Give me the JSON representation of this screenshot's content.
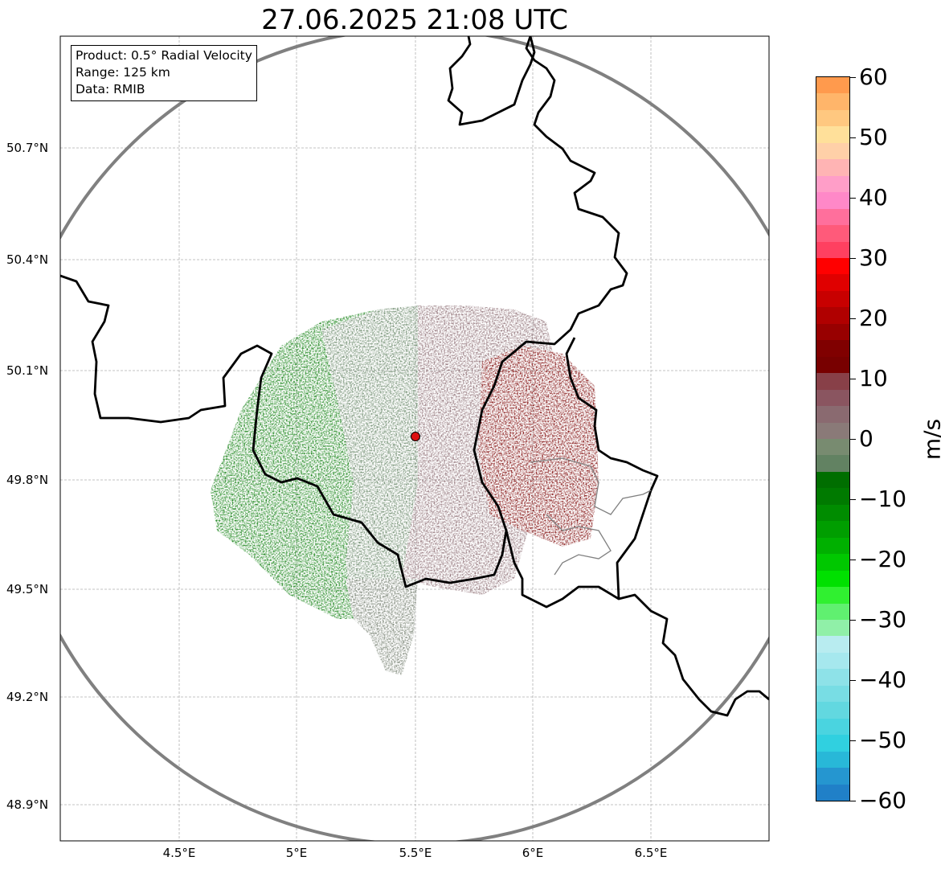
{
  "title": "27.06.2025 21:08 UTC",
  "info_box": {
    "product": "Product: 0.5° Radial Velocity",
    "range": "Range: 125 km",
    "source": "Data: RMIB"
  },
  "lat_labels": [
    "50.7°N",
    "50.4°N",
    "50.1°N",
    "49.8°N",
    "49.5°N",
    "49.2°N",
    "48.9°N"
  ],
  "lon_labels": [
    "4.5°E",
    "5°E",
    "5.5°E",
    "6°E",
    "6.5°E"
  ],
  "colorbar": {
    "unit": "m/s",
    "tick_labels": [
      "60",
      "50",
      "40",
      "30",
      "20",
      "10",
      "0",
      "−10",
      "−20",
      "−30",
      "−40",
      "−50",
      "−60"
    ],
    "colors": [
      "#ff9a4d",
      "#ffb56a",
      "#ffc880",
      "#ffe09a",
      "#ffd0a8",
      "#ffb4b4",
      "#ff9ec8",
      "#ff88c8",
      "#ff6f9c",
      "#ff5a7a",
      "#ff4060",
      "#ff0000",
      "#e00000",
      "#c80000",
      "#b00000",
      "#980000",
      "#800000",
      "#780000",
      "#884048",
      "#8a5560",
      "#8a6a70",
      "#8a7a78",
      "#788b70",
      "#628262",
      "#006e00",
      "#007a00",
      "#008c00",
      "#009e00",
      "#00b000",
      "#00c800",
      "#00e000",
      "#30f030",
      "#60f070",
      "#90f0a8",
      "#b8ecf0",
      "#a6e8ee",
      "#8ee2e8",
      "#78dde4",
      "#62d8e0",
      "#4ad4e0",
      "#30d0e0",
      "#28b8d8",
      "#2596d0",
      "#2080c8"
    ]
  },
  "colors": {
    "border_line": "#000000",
    "range_ring": "#808080",
    "grid": "#b0b0b0",
    "radar_site": "#dd1111",
    "inbound_green": "#0a7a0a",
    "outbound_red": "#7a0000"
  }
}
